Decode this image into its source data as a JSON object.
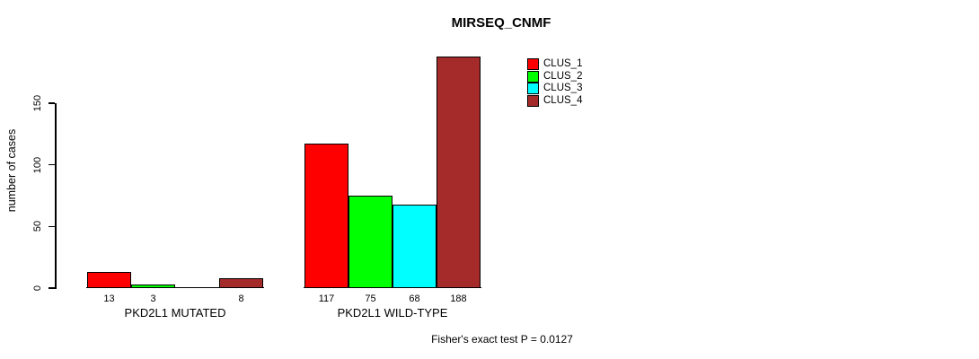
{
  "chart_data": {
    "type": "bar",
    "title": "MIRSEQ_CNMF",
    "xlabel": "",
    "ylabel": "number of cases",
    "yticks": [
      0,
      50,
      100,
      150
    ],
    "ylim": [
      0,
      150
    ],
    "grid": false,
    "legend_position": "top-right",
    "categories": [
      "PKD2L1 MUTATED",
      "PKD2L1 WILD-TYPE"
    ],
    "series": [
      {
        "name": "CLUS_1",
        "color": "#FF0000",
        "values": [
          13,
          117
        ]
      },
      {
        "name": "CLUS_2",
        "color": "#00FF00",
        "values": [
          3,
          75
        ]
      },
      {
        "name": "CLUS_3",
        "color": "#00FFFF",
        "values": [
          0,
          68
        ]
      },
      {
        "name": "CLUS_4",
        "color": "#A52A2A",
        "values": [
          8,
          188
        ]
      }
    ],
    "bar_value_labels": [
      [
        "13",
        "3",
        "",
        "8"
      ],
      [
        "117",
        "75",
        "68",
        "188"
      ]
    ],
    "annotation": "Fisher's exact test P = 0.0127"
  }
}
